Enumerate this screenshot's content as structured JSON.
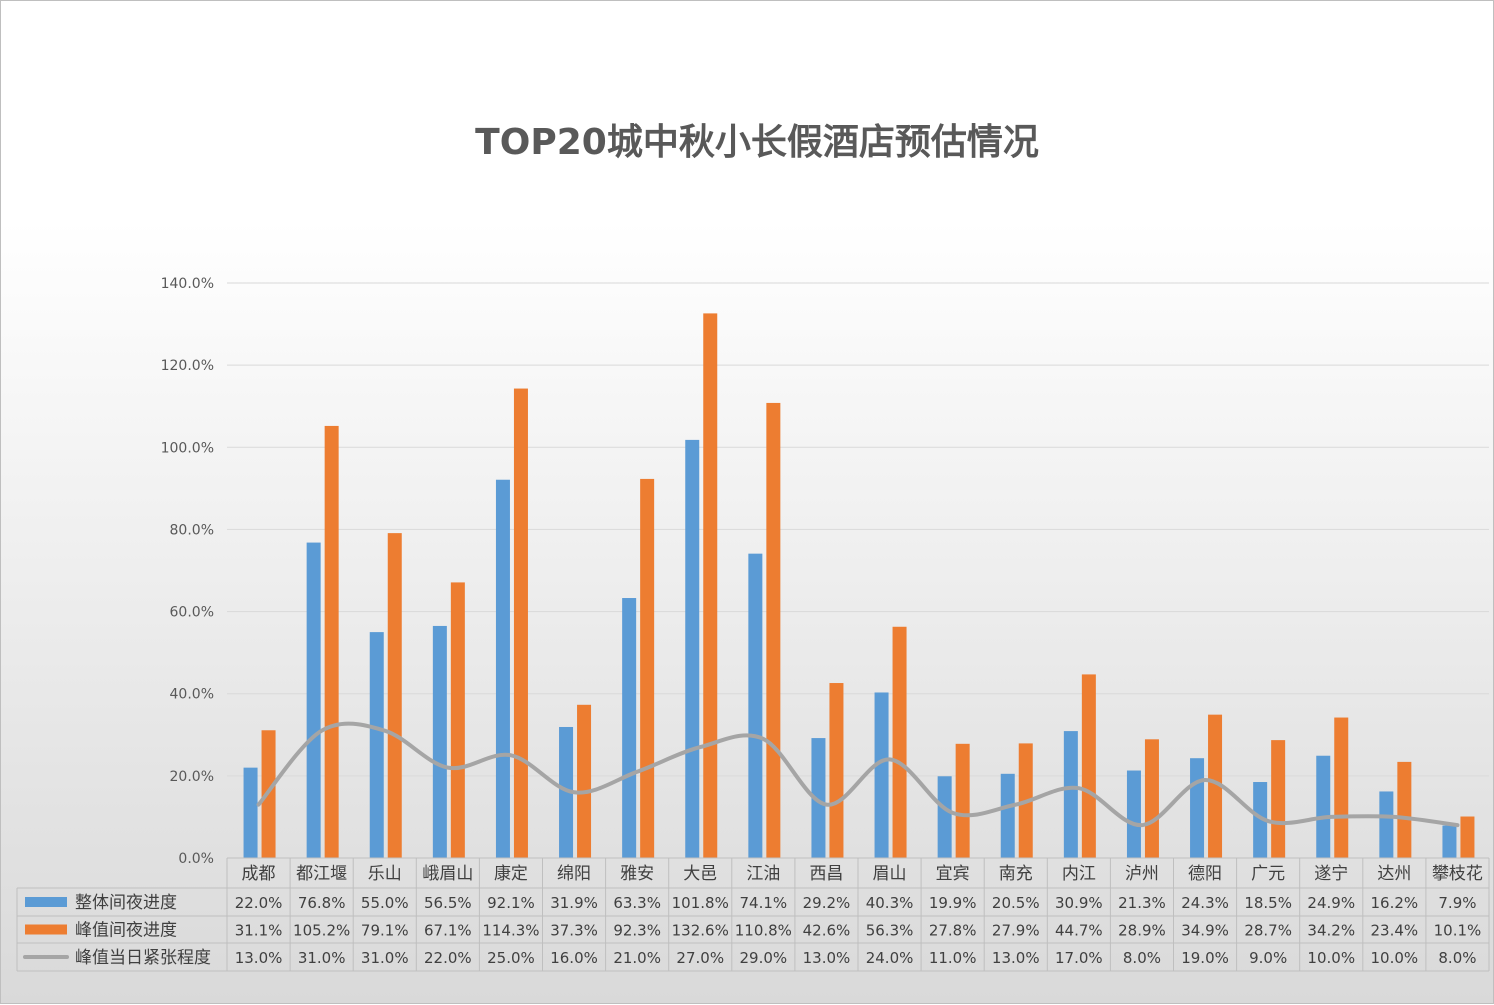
{
  "chart_data": {
    "type": "bar",
    "title": "TOP20城中秋小长假酒店预估情况",
    "categories": [
      "成都",
      "都江堰",
      "乐山",
      "峨眉山",
      "康定",
      "绵阳",
      "雅安",
      "大邑",
      "江油",
      "西昌",
      "眉山",
      "宜宾",
      "南充",
      "内江",
      "泸州",
      "德阳",
      "广元",
      "遂宁",
      "达州",
      "攀枝花"
    ],
    "y_ticks": [
      "0.0%",
      "20.0%",
      "40.0%",
      "60.0%",
      "80.0%",
      "100.0%",
      "120.0%",
      "140.0%"
    ],
    "ylim": [
      0,
      140
    ],
    "grid": true,
    "legend": "data-table",
    "series": [
      {
        "name": "整体间夜进度",
        "kind": "bar",
        "color": "#5b9bd5",
        "values": [
          22.0,
          76.8,
          55.0,
          56.5,
          92.1,
          31.9,
          63.3,
          101.8,
          74.1,
          29.2,
          40.3,
          19.9,
          20.5,
          30.9,
          21.3,
          24.3,
          18.5,
          24.9,
          16.2,
          7.9
        ],
        "labels": [
          "22.0%",
          "76.8%",
          "55.0%",
          "56.5%",
          "92.1%",
          "31.9%",
          "63.3%",
          "101.8%",
          "74.1%",
          "29.2%",
          "40.3%",
          "19.9%",
          "20.5%",
          "30.9%",
          "21.3%",
          "24.3%",
          "18.5%",
          "24.9%",
          "16.2%",
          "7.9%"
        ]
      },
      {
        "name": "峰值间夜进度",
        "kind": "bar",
        "color": "#ed7d31",
        "values": [
          31.1,
          105.2,
          79.1,
          67.1,
          114.3,
          37.3,
          92.3,
          132.6,
          110.8,
          42.6,
          56.3,
          27.8,
          27.9,
          44.7,
          28.9,
          34.9,
          28.7,
          34.2,
          23.4,
          10.1
        ],
        "labels": [
          "31.1%",
          "105.2%",
          "79.1%",
          "67.1%",
          "114.3%",
          "37.3%",
          "92.3%",
          "132.6%",
          "110.8%",
          "42.6%",
          "56.3%",
          "27.8%",
          "27.9%",
          "44.7%",
          "28.9%",
          "34.9%",
          "28.7%",
          "34.2%",
          "23.4%",
          "10.1%"
        ]
      },
      {
        "name": "峰值当日紧张程度",
        "kind": "line",
        "color": "#a5a5a5",
        "values": [
          13.0,
          31.0,
          31.0,
          22.0,
          25.0,
          16.0,
          21.0,
          27.0,
          29.0,
          13.0,
          24.0,
          11.0,
          13.0,
          17.0,
          8.0,
          19.0,
          9.0,
          10.0,
          10.0,
          8.0
        ],
        "labels": [
          "13.0%",
          "31.0%",
          "31.0%",
          "22.0%",
          "25.0%",
          "16.0%",
          "21.0%",
          "27.0%",
          "29.0%",
          "13.0%",
          "24.0%",
          "11.0%",
          "13.0%",
          "17.0%",
          "8.0%",
          "19.0%",
          "9.0%",
          "10.0%",
          "10.0%",
          "8.0%"
        ]
      }
    ]
  }
}
